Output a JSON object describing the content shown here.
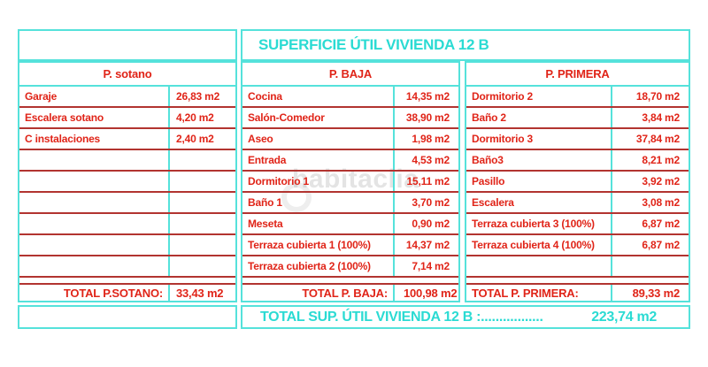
{
  "title": "SUPERFICIE ÚTIL VIVIENDA 12 B",
  "watermark": "habitaclia",
  "colors": {
    "cyan_text": "#2bdbd3",
    "cyan_border": "#55e2db",
    "red_text": "#e02418",
    "red_separator": "#b23430"
  },
  "panels": [
    {
      "header": "P. sotano",
      "rows": [
        {
          "label": "Garaje",
          "value": "26,83 m2"
        },
        {
          "label": "Escalera sotano",
          "value": "4,20 m2"
        },
        {
          "label": "C instalaciones",
          "value": "2,40 m2"
        },
        {
          "label": "",
          "value": ""
        },
        {
          "label": "",
          "value": ""
        },
        {
          "label": "",
          "value": ""
        },
        {
          "label": "",
          "value": ""
        },
        {
          "label": "",
          "value": ""
        },
        {
          "label": "",
          "value": ""
        }
      ],
      "total_label": "TOTAL P.SOTANO:",
      "total_value": "33,43 m2"
    },
    {
      "header": "P. BAJA",
      "rows": [
        {
          "label": "Cocina",
          "value": "14,35 m2"
        },
        {
          "label": "Salón-Comedor",
          "value": "38,90 m2"
        },
        {
          "label": "Aseo",
          "value": "1,98 m2"
        },
        {
          "label": "Entrada",
          "value": "4,53 m2"
        },
        {
          "label": "Dormitorio 1",
          "value": "15,11 m2"
        },
        {
          "label": "Baño 1",
          "value": "3,70 m2"
        },
        {
          "label": "Meseta",
          "value": "0,90 m2"
        },
        {
          "label": "Terraza cubierta 1 (100%)",
          "value": "14,37 m2"
        },
        {
          "label": "Terraza cubierta 2 (100%)",
          "value": "7,14 m2"
        }
      ],
      "total_label": "TOTAL P. BAJA:",
      "total_value": "100,98 m2"
    },
    {
      "header": "P. PRIMERA",
      "rows": [
        {
          "label": "Dormitorio 2",
          "value": "18,70 m2"
        },
        {
          "label": "Baño 2",
          "value": "3,84 m2"
        },
        {
          "label": "Dormitorio 3",
          "value": "37,84 m2"
        },
        {
          "label": "Baño3",
          "value": "8,21 m2"
        },
        {
          "label": "Pasillo",
          "value": "3,92 m2"
        },
        {
          "label": "Escalera",
          "value": "3,08 m2"
        },
        {
          "label": "Terraza cubierta 3 (100%)",
          "value": "6,87 m2"
        },
        {
          "label": "Terraza cubierta 4 (100%)",
          "value": "6,87 m2"
        },
        {
          "label": "",
          "value": ""
        }
      ],
      "total_label": "TOTAL P. PRIMERA:",
      "total_value": "89,33 m2"
    }
  ],
  "grand_total": {
    "label": "TOTAL SUP. ÚTIL VIVIENDA 12 B :.................",
    "value": "223,74 m2"
  }
}
